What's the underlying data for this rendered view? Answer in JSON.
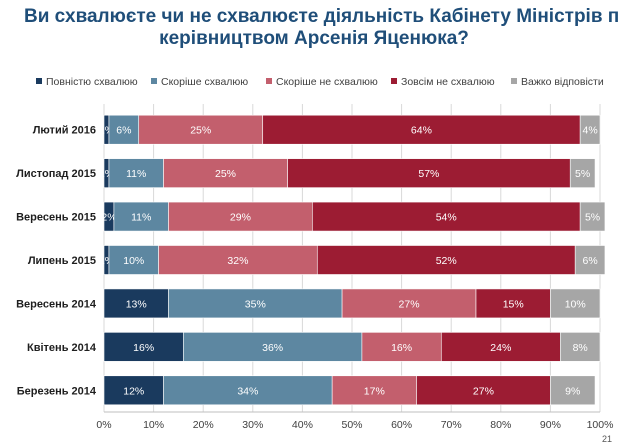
{
  "header": {
    "title_line1": "Ви схвалюєте чи не схвалюєте діяльність Кабінету Міністрів під",
    "title_line2": "керівництвом Арсенія Яценюка?"
  },
  "page_number": "21",
  "chart_data": {
    "type": "bar",
    "orientation": "horizontal",
    "stacked": true,
    "percent_stacked": true,
    "categories": [
      "Лютий 2016",
      "Листопад 2015",
      "Вересень 2015",
      "Липень 2015",
      "Вересень 2014",
      "Квітень 2014",
      "Березень 2014"
    ],
    "series": [
      {
        "name": "Повністю схвалюю",
        "color": "#1a3a5e",
        "values": [
          1,
          1,
          2,
          1,
          13,
          16,
          12
        ],
        "labels": [
          "1%",
          "1%",
          "2%",
          "1%",
          "13%",
          "16%",
          "12%"
        ]
      },
      {
        "name": "Скоріше схвалюю",
        "color": "#5d87a1",
        "values": [
          6,
          11,
          11,
          10,
          35,
          36,
          34
        ],
        "labels": [
          "6%",
          "11%",
          "11%",
          "10%",
          "35%",
          "36%",
          "34%"
        ]
      },
      {
        "name": "Скоріше не схвалюю",
        "color": "#c35f6d",
        "values": [
          25,
          25,
          29,
          32,
          27,
          16,
          17
        ],
        "labels": [
          "25%",
          "25%",
          "29%",
          "32%",
          "27%",
          "16%",
          "17%"
        ]
      },
      {
        "name": "Зовсім не схвалюю",
        "color": "#9c1c33",
        "values": [
          64,
          57,
          54,
          52,
          15,
          24,
          27
        ],
        "labels": [
          "64%",
          "57%",
          "54%",
          "52%",
          "15%",
          "24%",
          "27%"
        ]
      },
      {
        "name": "Важко відповісти",
        "color": "#a6a6a6",
        "values": [
          4,
          5,
          5,
          6,
          10,
          8,
          9
        ],
        "labels": [
          "4%",
          "5%",
          "5%",
          "6%",
          "10%",
          "8%",
          "9%"
        ]
      }
    ],
    "xlim": [
      0,
      100
    ],
    "x_ticks": [
      "0%",
      "10%",
      "20%",
      "30%",
      "40%",
      "50%",
      "60%",
      "70%",
      "80%",
      "90%",
      "100%"
    ],
    "grid": true,
    "legend_position": "top",
    "xlabel": "",
    "ylabel": ""
  }
}
